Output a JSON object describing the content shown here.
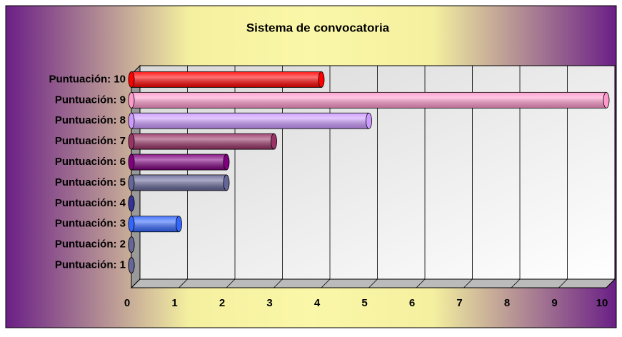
{
  "chart_data": {
    "type": "bar3d",
    "title": "Sistema de convocatoria",
    "categories": [
      "Puntuación: 1",
      "Puntuación: 2",
      "Puntuación: 3",
      "Puntuación: 4",
      "Puntuación: 5",
      "Puntuación: 6",
      "Puntuación: 7",
      "Puntuación: 8",
      "Puntuación: 9",
      "Puntuación: 10"
    ],
    "values": [
      0,
      0,
      1,
      0,
      2,
      2,
      3,
      5,
      10,
      4
    ],
    "colors": [
      "#666699",
      "#666699",
      "#3366ff",
      "#333399",
      "#666699",
      "#800080",
      "#993366",
      "#cc99ff",
      "#ff99cc",
      "#ff0000"
    ],
    "xlim": [
      0,
      10
    ],
    "xticks": [
      0,
      1,
      2,
      3,
      4,
      5,
      6,
      7,
      8,
      9,
      10
    ],
    "grid": true
  }
}
